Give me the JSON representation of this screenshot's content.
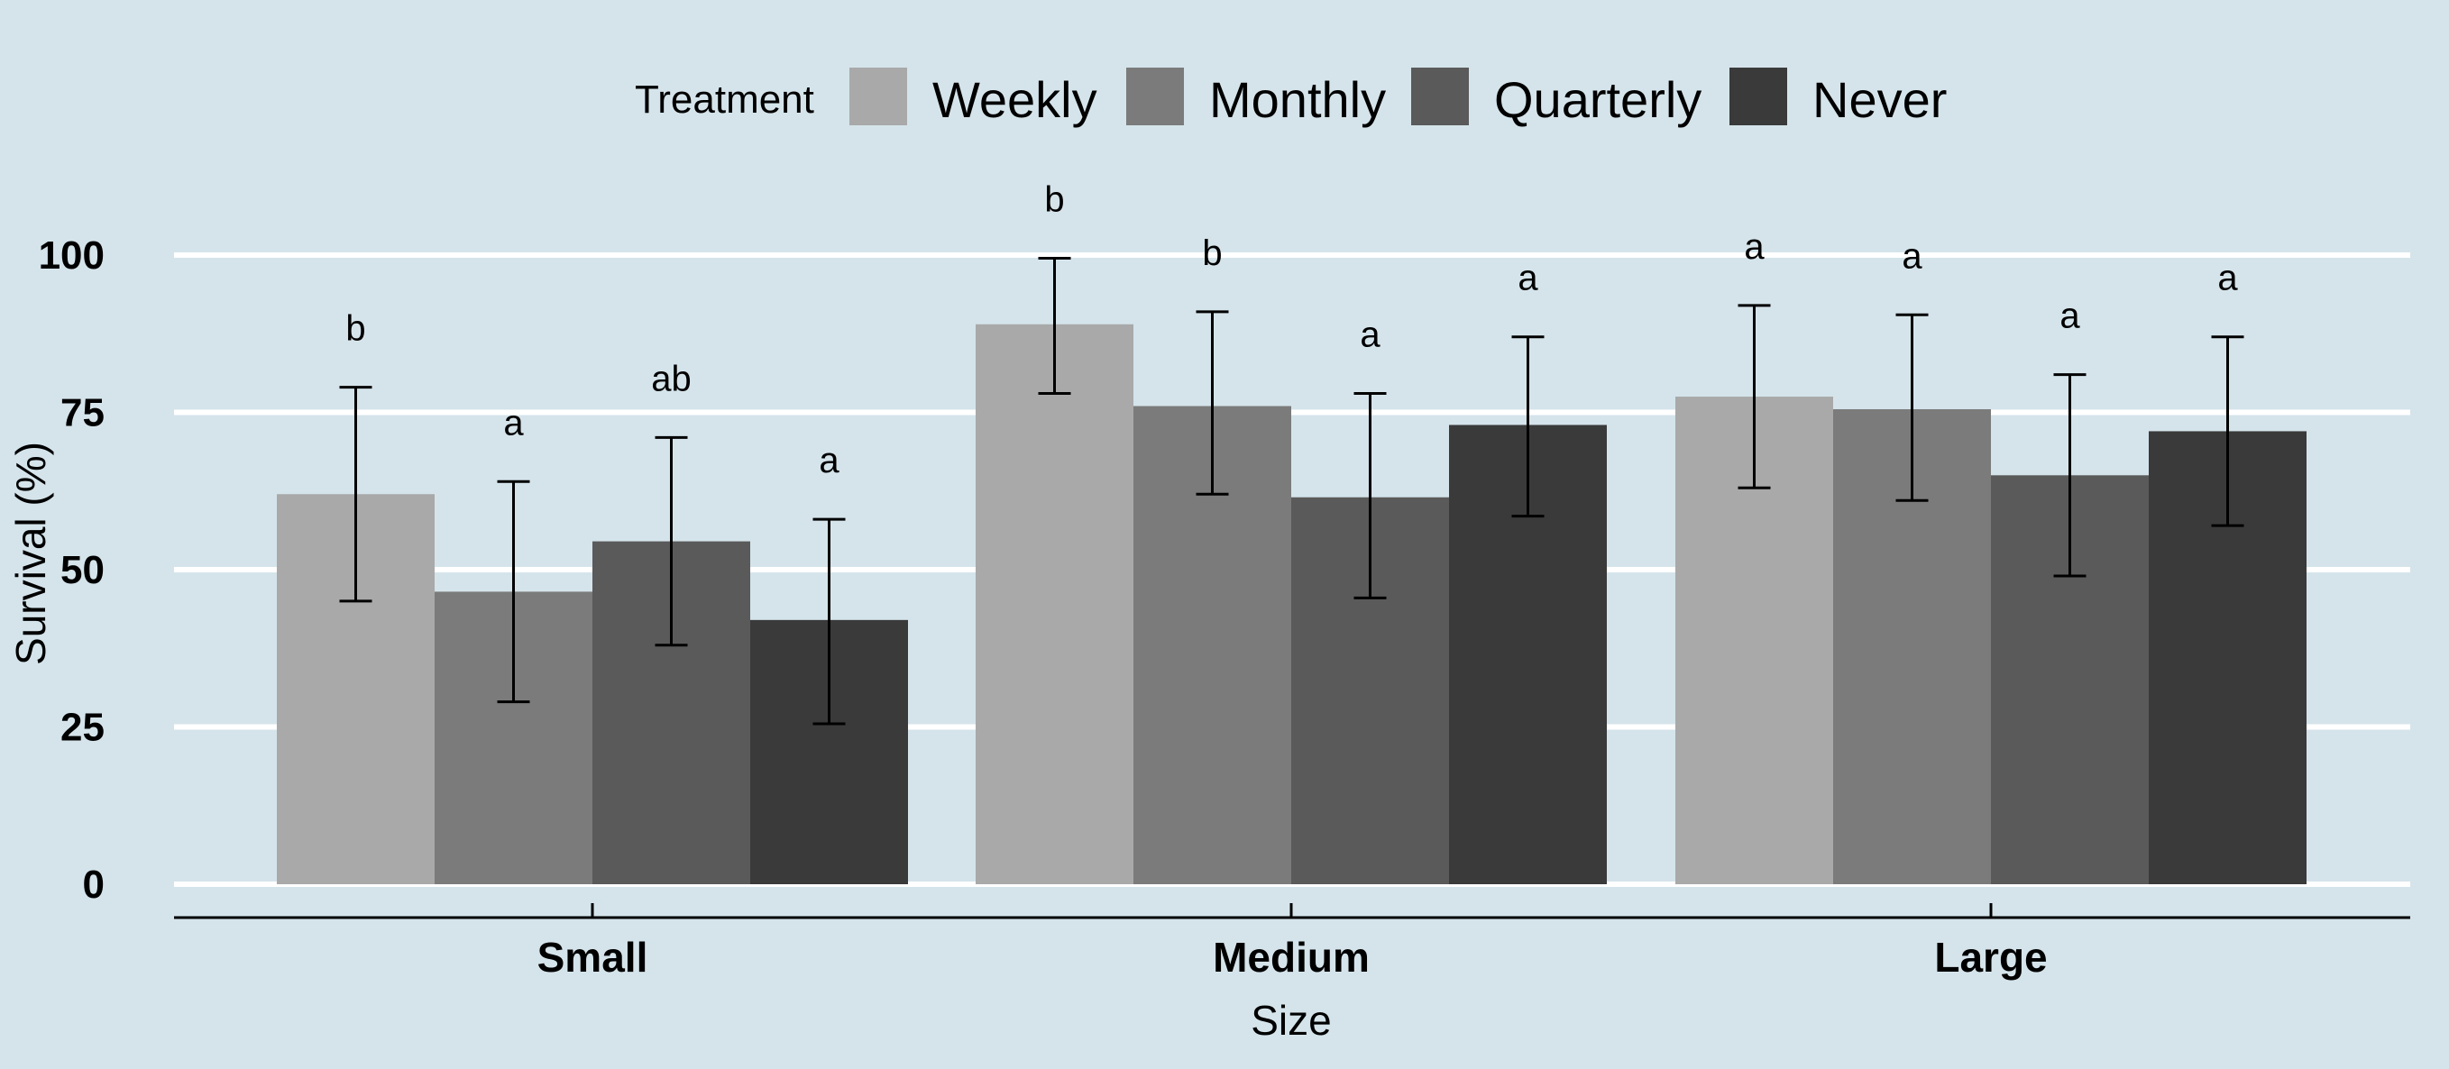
{
  "chart_data": {
    "type": "bar",
    "title": "",
    "xlabel": "Size",
    "ylabel": "Survival (%)",
    "ylim": [
      0,
      100
    ],
    "yticks": [
      "0",
      "25",
      "50",
      "75",
      "100"
    ],
    "ytick_values": [
      0,
      25,
      50,
      75,
      100
    ],
    "categories": [
      "Small",
      "Medium",
      "Large"
    ],
    "legend": {
      "title": "Treatment",
      "placement": "top"
    },
    "grid": "horizontal major lines",
    "series": [
      {
        "name": "Weekly",
        "color": "#a9a9a9",
        "values": [
          62,
          89,
          77.5
        ],
        "error_low": [
          45,
          78,
          63
        ],
        "error_high": [
          79,
          99.5,
          92
        ],
        "labels": [
          "b",
          "b",
          "a"
        ]
      },
      {
        "name": "Monthly",
        "color": "#7b7b7b",
        "values": [
          46.5,
          76,
          75.5
        ],
        "error_low": [
          29,
          62,
          61
        ],
        "error_high": [
          64,
          91,
          90.5
        ],
        "labels": [
          "a",
          "b",
          "a"
        ]
      },
      {
        "name": "Quarterly",
        "color": "#5a5a5a",
        "values": [
          54.5,
          61.5,
          65
        ],
        "error_low": [
          38,
          45.5,
          49
        ],
        "error_high": [
          71,
          78,
          81
        ],
        "labels": [
          "ab",
          "a",
          "a"
        ]
      },
      {
        "name": "Never",
        "color": "#3a3a3a",
        "values": [
          42,
          73,
          72
        ],
        "error_low": [
          25.5,
          58.5,
          57
        ],
        "error_high": [
          58,
          87,
          87
        ],
        "labels": [
          "a",
          "a",
          "a"
        ]
      }
    ]
  }
}
